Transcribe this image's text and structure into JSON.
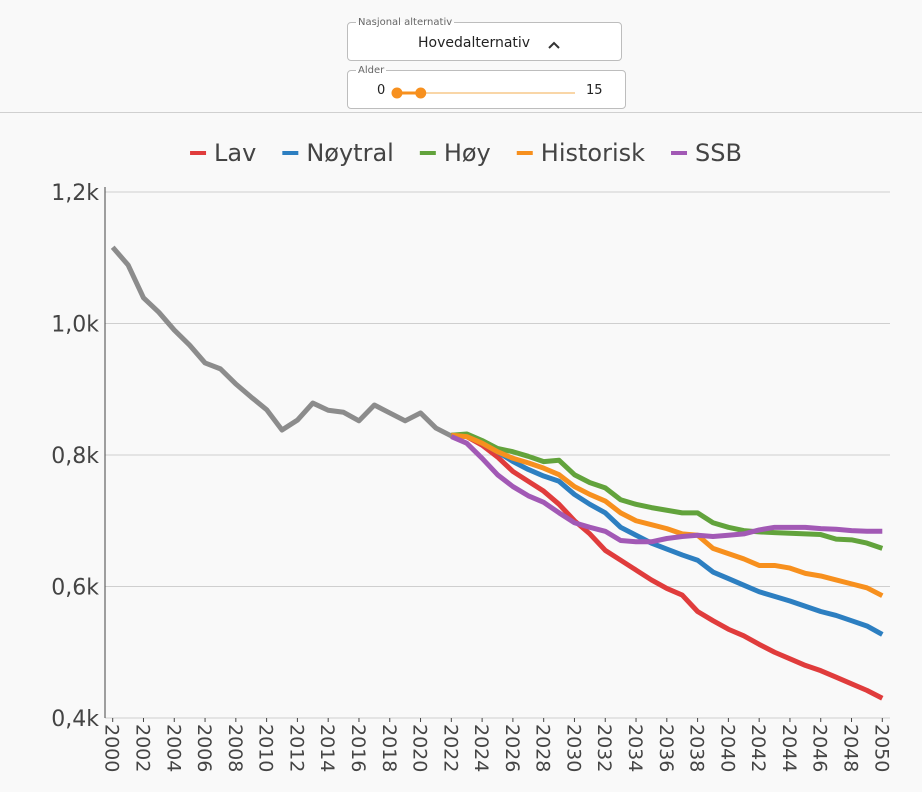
{
  "controls": {
    "dropdown": {
      "label": "Nasjonal alternativ",
      "value": "Hovedalternativ"
    },
    "slider": {
      "label": "Alder",
      "min": 0,
      "max": 15,
      "low": 0,
      "high": 2
    }
  },
  "chart_data": {
    "type": "line",
    "xlim": [
      1999.5,
      2050.5
    ],
    "xticks": [
      2000,
      2002,
      2004,
      2006,
      2008,
      2010,
      2012,
      2014,
      2016,
      2018,
      2020,
      2022,
      2024,
      2026,
      2028,
      2030,
      2032,
      2034,
      2036,
      2038,
      2040,
      2042,
      2044,
      2046,
      2048,
      2050
    ],
    "ylim": [
      400,
      1200
    ],
    "yticks": [
      {
        "value": 400,
        "label": "0,4k"
      },
      {
        "value": 600,
        "label": "0,6k"
      },
      {
        "value": 800,
        "label": "0,8k"
      },
      {
        "value": 1000,
        "label": "1,0k"
      },
      {
        "value": 1200,
        "label": "1,2k"
      }
    ],
    "grid": true,
    "legend": "top",
    "series": [
      {
        "color": "#8c8c8c",
        "x": [
          2000,
          2001,
          2002,
          2003,
          2004,
          2005,
          2006,
          2007,
          2008,
          2009,
          2010,
          2011,
          2012,
          2013,
          2014,
          2015,
          2016,
          2017,
          2018,
          2019,
          2020,
          2021,
          2022,
          2023
        ],
        "values": [
          1116,
          1089,
          1039,
          1017,
          990,
          967,
          940,
          931,
          908,
          888,
          869,
          838,
          853,
          879,
          868,
          865,
          852,
          876,
          864,
          852,
          864,
          841,
          829,
          829
        ]
      },
      {
        "name": "Lav",
        "color": "#e03c3c",
        "x": [
          2022,
          2023,
          2024,
          2025,
          2026,
          2027,
          2028,
          2029,
          2030,
          2031,
          2032,
          2033,
          2034,
          2035,
          2036,
          2037,
          2038,
          2039,
          2040,
          2041,
          2042,
          2043,
          2044,
          2045,
          2046,
          2047,
          2048,
          2049,
          2050
        ],
        "values": [
          830,
          828,
          815,
          797,
          775,
          760,
          745,
          725,
          700,
          680,
          655,
          640,
          625,
          610,
          597,
          587,
          562,
          548,
          535,
          525,
          512,
          500,
          490,
          480,
          472,
          462,
          452,
          442,
          430
        ]
      },
      {
        "name": "Nøytral",
        "color": "#2d7fc1",
        "x": [
          2022,
          2023,
          2024,
          2025,
          2026,
          2027,
          2028,
          2029,
          2030,
          2031,
          2032,
          2033,
          2034,
          2035,
          2036,
          2037,
          2038,
          2039,
          2040,
          2041,
          2042,
          2043,
          2044,
          2045,
          2046,
          2047,
          2048,
          2049,
          2050
        ],
        "values": [
          830,
          830,
          818,
          805,
          790,
          778,
          768,
          760,
          740,
          725,
          712,
          690,
          678,
          666,
          657,
          648,
          640,
          622,
          612,
          602,
          592,
          585,
          578,
          570,
          562,
          556,
          548,
          540,
          527
        ]
      },
      {
        "name": "Høy",
        "color": "#62a33c",
        "x": [
          2022,
          2023,
          2024,
          2025,
          2026,
          2027,
          2028,
          2029,
          2030,
          2031,
          2032,
          2033,
          2034,
          2035,
          2036,
          2037,
          2038,
          2039,
          2040,
          2041,
          2042,
          2043,
          2044,
          2045,
          2046,
          2047,
          2048,
          2049,
          2050
        ],
        "values": [
          830,
          832,
          822,
          810,
          805,
          798,
          790,
          792,
          770,
          758,
          750,
          732,
          725,
          720,
          716,
          712,
          712,
          697,
          690,
          685,
          683,
          682,
          681,
          680,
          679,
          672,
          671,
          666,
          658
        ]
      },
      {
        "name": "Historisk",
        "color": "#f7901e",
        "x": [
          2022,
          2023,
          2024,
          2025,
          2026,
          2027,
          2028,
          2029,
          2030,
          2031,
          2032,
          2033,
          2034,
          2035,
          2036,
          2037,
          2038,
          2039,
          2040,
          2041,
          2042,
          2043,
          2044,
          2045,
          2046,
          2047,
          2048,
          2049,
          2050
        ],
        "values": [
          830,
          828,
          818,
          805,
          795,
          788,
          780,
          770,
          752,
          740,
          730,
          712,
          700,
          694,
          688,
          680,
          678,
          658,
          650,
          642,
          632,
          632,
          628,
          620,
          616,
          610,
          604,
          598,
          586
        ]
      },
      {
        "name": "SSB",
        "color": "#a259b5",
        "x": [
          2022,
          2023,
          2024,
          2025,
          2026,
          2027,
          2028,
          2029,
          2030,
          2031,
          2032,
          2033,
          2034,
          2035,
          2036,
          2037,
          2038,
          2039,
          2040,
          2041,
          2042,
          2043,
          2044,
          2045,
          2046,
          2047,
          2048,
          2049,
          2050
        ],
        "values": [
          828,
          818,
          795,
          770,
          752,
          738,
          728,
          712,
          697,
          690,
          684,
          670,
          668,
          668,
          673,
          676,
          678,
          676,
          678,
          680,
          686,
          690,
          690,
          690,
          688,
          687,
          685,
          684,
          684
        ]
      }
    ]
  }
}
